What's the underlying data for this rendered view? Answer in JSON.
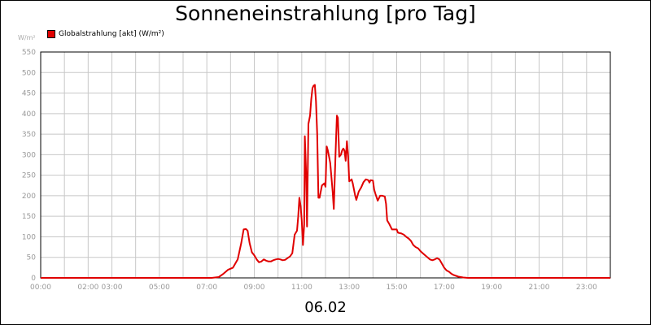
{
  "chart_data": {
    "type": "line",
    "title": "Sonneneinstrahlung [pro Tag]",
    "ylabel": "W/m²",
    "xlabel": "06.02",
    "ylim": [
      0,
      550
    ],
    "xlim": [
      0,
      24
    ],
    "yticks": [
      0,
      50,
      100,
      150,
      200,
      250,
      300,
      350,
      400,
      450,
      500,
      550
    ],
    "xticks": [
      {
        "x": 0,
        "label": "00:00"
      },
      {
        "x": 2,
        "label": "02:00"
      },
      {
        "x": 3,
        "label": "03:00"
      },
      {
        "x": 5,
        "label": "05:00"
      },
      {
        "x": 7,
        "label": "07:00"
      },
      {
        "x": 9,
        "label": "09:00"
      },
      {
        "x": 11,
        "label": "11:00"
      },
      {
        "x": 13,
        "label": "13:00"
      },
      {
        "x": 15,
        "label": "15:00"
      },
      {
        "x": 17,
        "label": "17:00"
      },
      {
        "x": 19,
        "label": "19:00"
      },
      {
        "x": 21,
        "label": "21:00"
      },
      {
        "x": 23,
        "label": "23:00"
      }
    ],
    "grid": true,
    "legend_position": "top-left",
    "series": [
      {
        "name": "Globalstrahlung [akt] (W/m²)",
        "color": "#e00000",
        "points": [
          [
            0,
            0
          ],
          [
            7.2,
            0
          ],
          [
            7.5,
            2
          ],
          [
            7.7,
            10
          ],
          [
            7.9,
            20
          ],
          [
            8.1,
            25
          ],
          [
            8.3,
            45
          ],
          [
            8.45,
            85
          ],
          [
            8.55,
            118
          ],
          [
            8.65,
            119
          ],
          [
            8.72,
            115
          ],
          [
            8.8,
            85
          ],
          [
            8.9,
            62
          ],
          [
            9.0,
            55
          ],
          [
            9.1,
            45
          ],
          [
            9.2,
            38
          ],
          [
            9.3,
            40
          ],
          [
            9.4,
            45
          ],
          [
            9.5,
            42
          ],
          [
            9.6,
            40
          ],
          [
            9.7,
            40
          ],
          [
            9.8,
            43
          ],
          [
            9.9,
            45
          ],
          [
            10.0,
            46
          ],
          [
            10.1,
            45
          ],
          [
            10.2,
            43
          ],
          [
            10.3,
            44
          ],
          [
            10.4,
            48
          ],
          [
            10.5,
            52
          ],
          [
            10.6,
            60
          ],
          [
            10.7,
            105
          ],
          [
            10.8,
            115
          ],
          [
            10.85,
            150
          ],
          [
            10.9,
            195
          ],
          [
            10.95,
            175
          ],
          [
            11.0,
            140
          ],
          [
            11.05,
            80
          ],
          [
            11.1,
            130
          ],
          [
            11.13,
            345
          ],
          [
            11.18,
            260
          ],
          [
            11.22,
            125
          ],
          [
            11.28,
            375
          ],
          [
            11.35,
            395
          ],
          [
            11.4,
            435
          ],
          [
            11.45,
            462
          ],
          [
            11.5,
            468
          ],
          [
            11.55,
            470
          ],
          [
            11.6,
            430
          ],
          [
            11.65,
            350
          ],
          [
            11.7,
            195
          ],
          [
            11.75,
            195
          ],
          [
            11.85,
            225
          ],
          [
            11.95,
            230
          ],
          [
            12.0,
            222
          ],
          [
            12.05,
            320
          ],
          [
            12.1,
            310
          ],
          [
            12.15,
            295
          ],
          [
            12.2,
            280
          ],
          [
            12.3,
            210
          ],
          [
            12.35,
            168
          ],
          [
            12.42,
            300
          ],
          [
            12.48,
            395
          ],
          [
            12.52,
            390
          ],
          [
            12.58,
            295
          ],
          [
            12.65,
            300
          ],
          [
            12.7,
            310
          ],
          [
            12.75,
            315
          ],
          [
            12.8,
            310
          ],
          [
            12.85,
            285
          ],
          [
            12.9,
            333
          ],
          [
            12.95,
            300
          ],
          [
            13.0,
            235
          ],
          [
            13.1,
            240
          ],
          [
            13.15,
            230
          ],
          [
            13.2,
            215
          ],
          [
            13.25,
            200
          ],
          [
            13.3,
            190
          ],
          [
            13.4,
            210
          ],
          [
            13.5,
            220
          ],
          [
            13.6,
            233
          ],
          [
            13.7,
            240
          ],
          [
            13.8,
            238
          ],
          [
            13.85,
            232
          ],
          [
            13.9,
            238
          ],
          [
            14.0,
            237
          ],
          [
            14.05,
            215
          ],
          [
            14.1,
            205
          ],
          [
            14.2,
            188
          ],
          [
            14.3,
            200
          ],
          [
            14.4,
            200
          ],
          [
            14.5,
            198
          ],
          [
            14.55,
            180
          ],
          [
            14.6,
            140
          ],
          [
            14.7,
            130
          ],
          [
            14.8,
            118
          ],
          [
            14.9,
            118
          ],
          [
            15.0,
            118
          ],
          [
            15.05,
            110
          ],
          [
            15.2,
            108
          ],
          [
            15.3,
            105
          ],
          [
            15.4,
            100
          ],
          [
            15.5,
            96
          ],
          [
            15.6,
            90
          ],
          [
            15.7,
            80
          ],
          [
            15.8,
            75
          ],
          [
            15.9,
            72
          ],
          [
            16.0,
            65
          ],
          [
            16.1,
            60
          ],
          [
            16.2,
            55
          ],
          [
            16.3,
            50
          ],
          [
            16.4,
            45
          ],
          [
            16.5,
            43
          ],
          [
            16.6,
            45
          ],
          [
            16.7,
            48
          ],
          [
            16.8,
            45
          ],
          [
            16.9,
            35
          ],
          [
            17.0,
            25
          ],
          [
            17.1,
            18
          ],
          [
            17.2,
            15
          ],
          [
            17.3,
            10
          ],
          [
            17.4,
            7
          ],
          [
            17.5,
            5
          ],
          [
            17.6,
            3
          ],
          [
            17.8,
            1
          ],
          [
            18.0,
            0
          ],
          [
            24,
            0
          ]
        ]
      }
    ]
  }
}
